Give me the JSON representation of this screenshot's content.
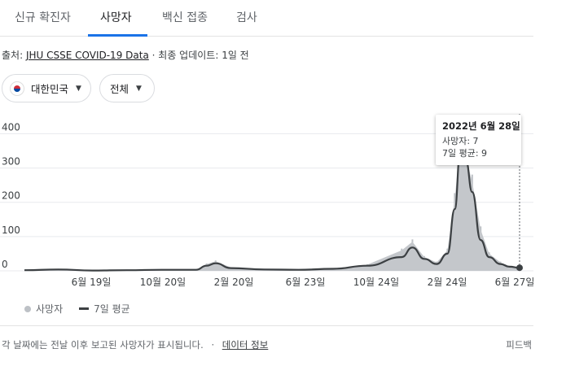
{
  "tabs": [
    {
      "label": "신규 확진자",
      "active": false
    },
    {
      "label": "사망자",
      "active": true
    },
    {
      "label": "백신 접종",
      "active": false
    },
    {
      "label": "검사",
      "active": false
    }
  ],
  "source": {
    "prefix": "출처:",
    "link": "JHU CSSE COVID-19 Data",
    "sep": "·",
    "updated": "최종 업데이트: 1일 전"
  },
  "filters": {
    "region": "대한민국",
    "range": "전체"
  },
  "tooltip": {
    "date": "2022년 6월 28일",
    "deaths": "사망자: 7",
    "avg": "7일 평균: 9"
  },
  "legend": {
    "deaths": "사망자",
    "avg": "7일 평균"
  },
  "footer": {
    "note": "각 날짜에는 전날 이후 보고된 사망자가 표시됩니다.",
    "sep": "·",
    "link": "데이터 정보",
    "feedback": "피드백"
  },
  "colors": {
    "accent": "#1a73e8",
    "bars": "#bdc1c6",
    "line": "#3c4043"
  },
  "chart_data": {
    "type": "area",
    "x": [
      "2020-02-01",
      "2020-04-01",
      "2020-06-01",
      "2020-08-01",
      "2020-10-01",
      "2020-12-01",
      "2020-12-20",
      "2021-01-05",
      "2021-02-01",
      "2021-04-01",
      "2021-06-01",
      "2021-08-01",
      "2021-10-01",
      "2021-12-01",
      "2021-12-20",
      "2022-01-10",
      "2022-02-01",
      "2022-02-20",
      "2022-03-05",
      "2022-03-15",
      "2022-03-25",
      "2022-04-05",
      "2022-04-20",
      "2022-05-05",
      "2022-05-25",
      "2022-06-10",
      "2022-06-28"
    ],
    "series": [
      {
        "name": "사망자",
        "values": [
          3,
          5,
          1,
          3,
          4,
          2,
          20,
          28,
          10,
          6,
          4,
          7,
          18,
          60,
          85,
          40,
          25,
          60,
          210,
          380,
          330,
          260,
          120,
          50,
          25,
          12,
          7
        ]
      },
      {
        "name": "7일 평균",
        "values": [
          2,
          4,
          1,
          2,
          3,
          3,
          15,
          22,
          8,
          4,
          3,
          6,
          15,
          40,
          68,
          35,
          20,
          50,
          180,
          350,
          320,
          230,
          90,
          40,
          20,
          12,
          9
        ]
      }
    ],
    "ylim": [
      0,
      420
    ],
    "yticks": [
      "0",
      "100",
      "200",
      "300",
      "400"
    ],
    "xticks": [
      "6월 19일",
      "10월 20일",
      "2월 20일",
      "6월 23일",
      "10월 24일",
      "2월 24일",
      "6월 27일"
    ]
  }
}
